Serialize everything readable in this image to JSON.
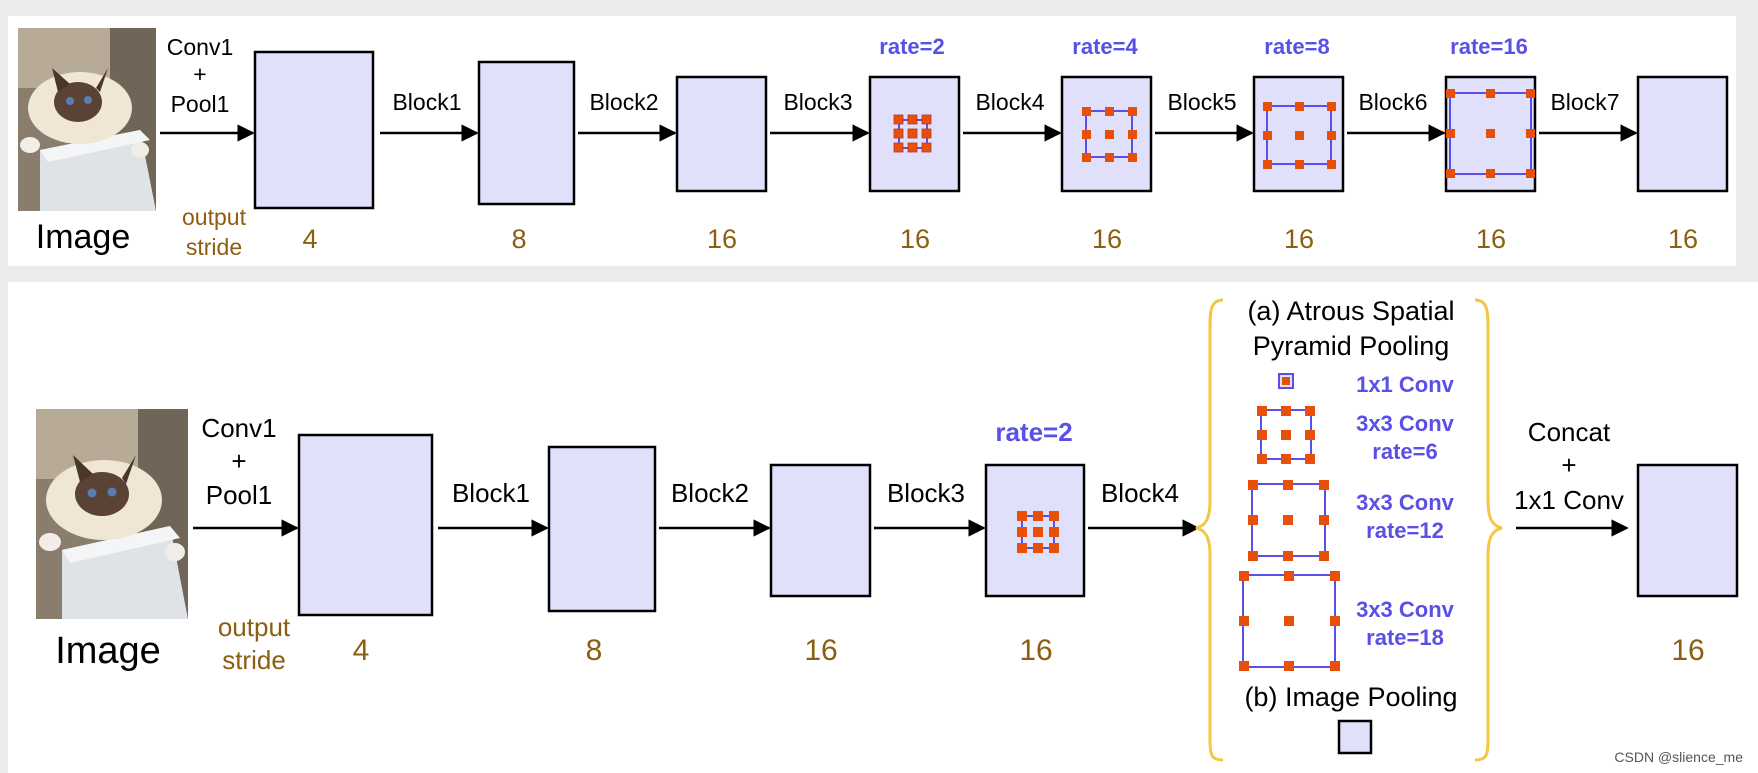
{
  "top": {
    "image_label": "Image",
    "first_op": [
      "Conv1",
      "+",
      "Pool1"
    ],
    "stride_label": [
      "output",
      "stride"
    ],
    "blocks": [
      "Block1",
      "Block2",
      "Block3",
      "Block4",
      "Block5",
      "Block6",
      "Block7"
    ],
    "rates": [
      "rate=2",
      "rate=4",
      "rate=8",
      "rate=16"
    ],
    "strides": [
      "4",
      "8",
      "16",
      "16",
      "16",
      "16",
      "16",
      "16"
    ]
  },
  "bottom": {
    "image_label": "Image",
    "first_op": [
      "Conv1",
      "+",
      "Pool1"
    ],
    "stride_label": [
      "output",
      "stride"
    ],
    "blocks": [
      "Block1",
      "Block2",
      "Block3",
      "Block4"
    ],
    "rate": "rate=2",
    "strides": [
      "4",
      "8",
      "16",
      "16",
      "16"
    ],
    "aspp_title": [
      "(a) Atrous Spatial",
      "Pyramid Pooling"
    ],
    "aspp_items": [
      {
        "label": [
          "1x1 Conv"
        ]
      },
      {
        "label": [
          "3x3 Conv",
          "rate=6"
        ]
      },
      {
        "label": [
          "3x3 Conv",
          "rate=12"
        ]
      },
      {
        "label": [
          "3x3 Conv",
          "rate=18"
        ]
      }
    ],
    "image_pooling": "(b) Image Pooling",
    "concat": [
      "Concat",
      "+",
      "1x1 Conv"
    ]
  },
  "watermark": "CSDN @slience_me",
  "colors": {
    "box_fill": "#e0e0fa",
    "rate_blue": "#5a50e6",
    "stride_brown": "#8b5e10",
    "dot_orange": "#e8500a",
    "brace_yellow": "#f2c744"
  }
}
